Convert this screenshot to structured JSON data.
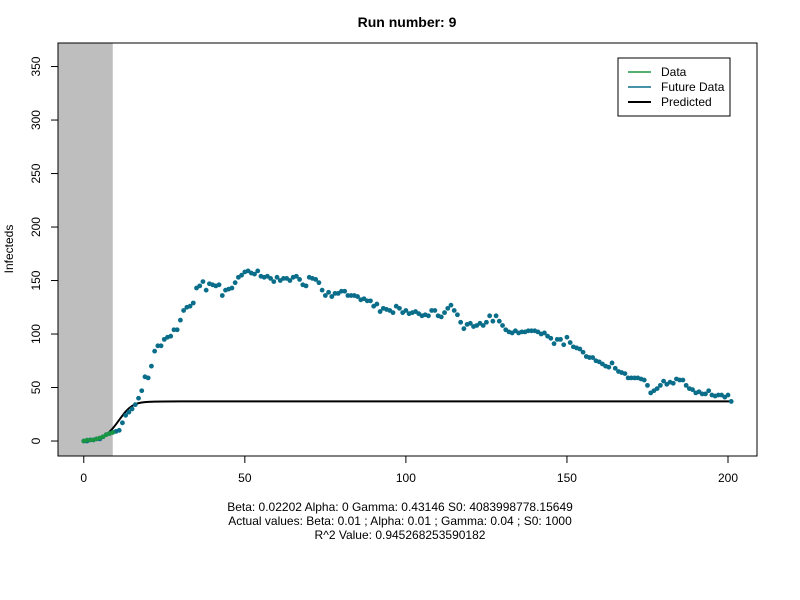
{
  "chart_data": {
    "type": "scatter",
    "title": "Run number:  9",
    "xlabel": "",
    "ylabel": "Infecteds",
    "xlim": [
      -8,
      209
    ],
    "ylim": [
      -14,
      372
    ],
    "x_ticks": [
      0,
      50,
      100,
      150,
      200
    ],
    "y_ticks": [
      0,
      50,
      100,
      150,
      200,
      250,
      300,
      350
    ],
    "shaded_region": {
      "x_from": -8,
      "x_to": 9,
      "color": "#bebebe"
    },
    "legend": {
      "position": "top-right",
      "entries": [
        {
          "label": "Data",
          "color": "#1a9641"
        },
        {
          "label": "Future Data",
          "color": "#0a6e8a"
        },
        {
          "label": "Predicted",
          "color": "#000000"
        }
      ]
    },
    "colors": {
      "data": "#1a9641",
      "future": "#0a6e8a",
      "predicted": "#000000"
    },
    "series": [
      {
        "name": "Data",
        "x": [
          0,
          1,
          2,
          3,
          4,
          5,
          6,
          7,
          8,
          9
        ],
        "y": [
          0,
          1,
          1,
          1,
          2,
          3,
          4,
          6,
          7,
          8
        ]
      },
      {
        "name": "Future Data",
        "x": [
          0,
          1,
          2,
          3,
          4,
          5,
          6,
          7,
          8,
          9,
          10,
          11,
          12,
          13,
          14,
          15,
          16,
          17,
          18,
          19,
          20,
          21,
          22,
          23,
          24,
          25,
          26,
          27,
          28,
          29,
          30,
          31,
          32,
          33,
          34,
          35,
          36,
          37,
          38,
          39,
          40,
          41,
          42,
          43,
          44,
          45,
          46,
          47,
          48,
          49,
          50,
          51,
          52,
          53,
          54,
          55,
          56,
          57,
          58,
          59,
          60,
          61,
          62,
          63,
          64,
          65,
          66,
          67,
          68,
          69,
          70,
          71,
          72,
          73,
          74,
          75,
          76,
          77,
          78,
          79,
          80,
          81,
          82,
          83,
          84,
          85,
          86,
          87,
          88,
          89,
          90,
          91,
          92,
          93,
          94,
          95,
          96,
          97,
          98,
          99,
          100,
          101,
          102,
          103,
          104,
          105,
          106,
          107,
          108,
          109,
          110,
          111,
          112,
          113,
          114,
          115,
          116,
          117,
          118,
          119,
          120,
          121,
          122,
          123,
          124,
          125,
          126,
          127,
          128,
          129,
          130,
          131,
          132,
          133,
          134,
          135,
          136,
          137,
          138,
          139,
          140,
          141,
          142,
          143,
          144,
          145,
          146,
          147,
          148,
          149,
          150,
          151,
          152,
          153,
          154,
          155,
          156,
          157,
          158,
          159,
          160,
          161,
          162,
          163,
          164,
          165,
          166,
          167,
          168,
          169,
          170,
          171,
          172,
          173,
          174,
          175,
          176,
          177,
          178,
          179,
          180,
          181,
          182,
          183,
          184,
          185,
          186,
          187,
          188,
          189,
          190,
          191,
          192,
          193,
          194,
          195,
          196,
          197,
          198,
          199,
          200,
          201
        ],
        "y": [
          0,
          0,
          1,
          1,
          2,
          2,
          4,
          6,
          7,
          8,
          9,
          10,
          17,
          24,
          27,
          30,
          34,
          40,
          47,
          60,
          59,
          70,
          84,
          89,
          89,
          95,
          97,
          98,
          104,
          104,
          113,
          122,
          125,
          126,
          129,
          143,
          145,
          149,
          141,
          147,
          146,
          145,
          146,
          136,
          141,
          142,
          143,
          148,
          153,
          155,
          158,
          159,
          157,
          156,
          159,
          154,
          153,
          154,
          152,
          149,
          153,
          150,
          152,
          152,
          150,
          153,
          154,
          151,
          146,
          145,
          153,
          152,
          151,
          148,
          141,
          136,
          139,
          135,
          138,
          138,
          140,
          140,
          136,
          136,
          136,
          135,
          132,
          133,
          131,
          131,
          126,
          128,
          121,
          124,
          123,
          122,
          120,
          126,
          124,
          120,
          122,
          119,
          120,
          121,
          119,
          117,
          118,
          117,
          122,
          122,
          117,
          116,
          120,
          124,
          127,
          122,
          118,
          111,
          105,
          109,
          110,
          107,
          108,
          110,
          108,
          111,
          117,
          112,
          117,
          112,
          108,
          104,
          102,
          101,
          103,
          101,
          102,
          102,
          103,
          103,
          103,
          102,
          100,
          101,
          98,
          96,
          91,
          95,
          95,
          90,
          97,
          92,
          88,
          87,
          86,
          83,
          79,
          78,
          78,
          75,
          74,
          72,
          70,
          69,
          73,
          68,
          65,
          64,
          63,
          59,
          59,
          59,
          59,
          58,
          57,
          52,
          45,
          47,
          49,
          52,
          56,
          53,
          55,
          54,
          58,
          57,
          57,
          52,
          49,
          48,
          45,
          46,
          44,
          44,
          47,
          43,
          42,
          43,
          43,
          41,
          43,
          37
        ]
      },
      {
        "name": "Predicted",
        "x": [
          0,
          1,
          2,
          3,
          4,
          5,
          6,
          7,
          8,
          9,
          10,
          11,
          12,
          13,
          14,
          15,
          16,
          17,
          18,
          19,
          20,
          22,
          25,
          30,
          40,
          60,
          80,
          100,
          120,
          140,
          160,
          180,
          201
        ],
        "y": [
          0,
          0.3,
          0.6,
          1.0,
          1.6,
          2.6,
          4.0,
          6.0,
          8.6,
          11.8,
          15.6,
          19.7,
          23.8,
          27.5,
          30.5,
          32.8,
          34.4,
          35.4,
          36.0,
          36.4,
          36.6,
          36.8,
          36.9,
          37,
          37,
          37,
          37,
          37,
          37,
          37,
          37,
          37,
          37
        ]
      }
    ]
  },
  "captions": {
    "line1": "Beta:  0.02202 Alpha:  0 Gamma:  0.43146 S0:  4083998778.15649",
    "line2": "Actual values: Beta:  0.01 ; Alpha:  0.01 ; Gamma:  0.04 ; S0:  1000",
    "line3": "R^2 Value:  0.945268253590182"
  }
}
